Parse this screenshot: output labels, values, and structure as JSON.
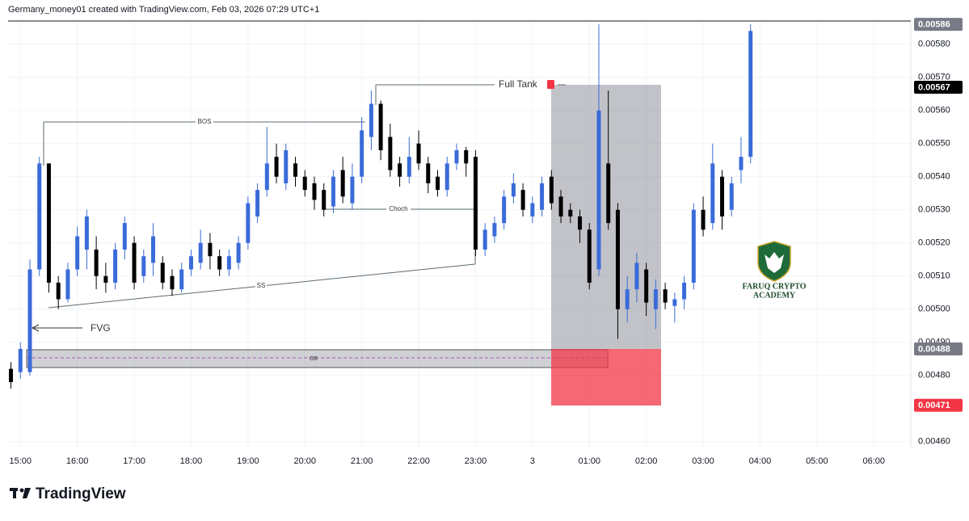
{
  "header": "Germany_money01 created with TradingView.com, Feb 03, 2026 07:29 UTC+1",
  "footer": "TradingView",
  "watermark": [
    "FARUQ CRYPTO",
    "ACADEMY"
  ],
  "chart_data": {
    "type": "candlestick",
    "up_color": "#3a6bd9",
    "down_color": "#000000",
    "x": [
      -10,
      0,
      10,
      20,
      30,
      40,
      50,
      60,
      70,
      80,
      90,
      100,
      110,
      120,
      130,
      140,
      150,
      160,
      170,
      180,
      190,
      200,
      210,
      220,
      230,
      240,
      250,
      260,
      270,
      280,
      290,
      300,
      310,
      320,
      330,
      340,
      350,
      360,
      370,
      380,
      390,
      400,
      410,
      420,
      430,
      440,
      450,
      460,
      470,
      480,
      490,
      500,
      510,
      520,
      530,
      540,
      550,
      560,
      570,
      580,
      590,
      600,
      610,
      620,
      630,
      640,
      650,
      660,
      670,
      680,
      690,
      700,
      710,
      720,
      730,
      740,
      750,
      760,
      770
    ],
    "open": [
      0.00482,
      0.00481,
      0.00481,
      0.00512,
      0.00544,
      0.00508,
      0.00503,
      0.00512,
      0.00518,
      0.00518,
      0.0051,
      0.00508,
      0.00518,
      0.0052,
      0.0051,
      0.00514,
      0.00514,
      0.0051,
      0.00506,
      0.00512,
      0.00514,
      0.0052,
      0.00516,
      0.00512,
      0.00514,
      0.0052,
      0.00528,
      0.00536,
      0.00546,
      0.00538,
      0.00544,
      0.0054,
      0.00538,
      0.00536,
      0.00531,
      0.00542,
      0.00532,
      0.0054,
      0.00552,
      0.00562,
      0.00552,
      0.00544,
      0.0054,
      0.0055,
      0.00544,
      0.0054,
      0.00536,
      0.00544,
      0.00548,
      0.00546,
      0.00518,
      0.00522,
      0.00526,
      0.00534,
      0.00536,
      0.00528,
      0.0053,
      0.0054,
      0.00534,
      0.0053,
      0.00528,
      0.00524,
      0.00512,
      0.00544,
      0.0053,
      0.005,
      0.00506,
      0.00512,
      0.005,
      0.00506,
      0.00501,
      0.00503,
      0.00508,
      0.0053,
      0.00526,
      0.0054,
      0.0053,
      0.00542,
      0.00546
    ],
    "high": [
      0.00484,
      0.0049,
      0.00515,
      0.00546,
      0.00544,
      0.0051,
      0.00514,
      0.00525,
      0.0053,
      0.00522,
      0.00514,
      0.0052,
      0.00528,
      0.00522,
      0.00518,
      0.00526,
      0.00516,
      0.00512,
      0.00514,
      0.00518,
      0.00524,
      0.00523,
      0.00518,
      0.00518,
      0.00522,
      0.00534,
      0.00538,
      0.00555,
      0.0055,
      0.0055,
      0.00546,
      0.00542,
      0.0054,
      0.00538,
      0.00542,
      0.00546,
      0.00544,
      0.00558,
      0.00566,
      0.00563,
      0.00556,
      0.00546,
      0.00552,
      0.00554,
      0.00546,
      0.00542,
      0.00546,
      0.0055,
      0.00549,
      0.00548,
      0.00526,
      0.00528,
      0.00536,
      0.00541,
      0.00538,
      0.00534,
      0.0054,
      0.00542,
      0.00536,
      0.00532,
      0.0053,
      0.00526,
      0.00586,
      0.00566,
      0.00532,
      0.0051,
      0.00517,
      0.00514,
      0.00509,
      0.00508,
      0.00505,
      0.0051,
      0.00532,
      0.00534,
      0.0055,
      0.00542,
      0.0054,
      0.00552,
      0.00586
    ],
    "low": [
      0.00476,
      0.00479,
      0.0048,
      0.0051,
      0.00505,
      0.005,
      0.00502,
      0.0051,
      0.00512,
      0.00506,
      0.00505,
      0.00506,
      0.00515,
      0.00506,
      0.00508,
      0.0051,
      0.00506,
      0.00504,
      0.00505,
      0.0051,
      0.00512,
      0.00512,
      0.0051,
      0.0051,
      0.00512,
      0.00518,
      0.00526,
      0.00534,
      0.00538,
      0.00536,
      0.00537,
      0.00534,
      0.0053,
      0.00528,
      0.00529,
      0.00532,
      0.0053,
      0.00538,
      0.00548,
      0.00545,
      0.0054,
      0.00537,
      0.00538,
      0.00542,
      0.00535,
      0.00534,
      0.00534,
      0.00542,
      0.0054,
      0.00516,
      0.00516,
      0.0052,
      0.00524,
      0.00532,
      0.00528,
      0.00526,
      0.00528,
      0.0053,
      0.00526,
      0.00526,
      0.0052,
      0.00506,
      0.0051,
      0.00524,
      0.00491,
      0.00496,
      0.00502,
      0.00498,
      0.00494,
      0.005,
      0.00496,
      0.005,
      0.00506,
      0.00522,
      0.00524,
      0.00524,
      0.00528,
      0.00538,
      0.00544
    ],
    "close": [
      0.00478,
      0.00488,
      0.00512,
      0.00544,
      0.00508,
      0.00503,
      0.00512,
      0.00522,
      0.00528,
      0.0051,
      0.00508,
      0.00518,
      0.00526,
      0.00508,
      0.00516,
      0.00522,
      0.00508,
      0.00506,
      0.00512,
      0.00516,
      0.0052,
      0.00516,
      0.00512,
      0.00516,
      0.0052,
      0.00532,
      0.00536,
      0.00544,
      0.0054,
      0.00548,
      0.0054,
      0.00536,
      0.00533,
      0.0053,
      0.0054,
      0.00534,
      0.0054,
      0.00554,
      0.00562,
      0.00548,
      0.00542,
      0.0054,
      0.00546,
      0.00544,
      0.00538,
      0.00536,
      0.00544,
      0.00548,
      0.00544,
      0.00518,
      0.00524,
      0.00526,
      0.00534,
      0.00538,
      0.0053,
      0.00532,
      0.00538,
      0.00532,
      0.00528,
      0.00528,
      0.00524,
      0.00508,
      0.0056,
      0.00526,
      0.005,
      0.00506,
      0.00514,
      0.00502,
      0.00506,
      0.00502,
      0.00503,
      0.00508,
      0.0053,
      0.00524,
      0.00544,
      0.00528,
      0.00538,
      0.00546,
      0.00584
    ],
    "xlim": [
      -13,
      939
    ],
    "xticks": [
      {
        "value": 0,
        "label": "15:00"
      },
      {
        "value": 60,
        "label": "16:00"
      },
      {
        "value": 120,
        "label": "17:00"
      },
      {
        "value": 180,
        "label": "18:00"
      },
      {
        "value": 240,
        "label": "19:00"
      },
      {
        "value": 300,
        "label": "20:00"
      },
      {
        "value": 360,
        "label": "21:00"
      },
      {
        "value": 420,
        "label": "22:00"
      },
      {
        "value": 480,
        "label": "23:00"
      },
      {
        "value": 540,
        "label": "3"
      },
      {
        "value": 600,
        "label": "01:00"
      },
      {
        "value": 660,
        "label": "02:00"
      },
      {
        "value": 720,
        "label": "03:00"
      },
      {
        "value": 780,
        "label": "04:00"
      },
      {
        "value": 840,
        "label": "05:00"
      },
      {
        "value": 900,
        "label": "06:00"
      }
    ],
    "ylim": [
      0.00458,
      0.00587
    ],
    "yticks": [
      {
        "value": 0.0046,
        "label": "0.00460"
      },
      {
        "value": 0.0048,
        "label": "0.00480"
      },
      {
        "value": 0.0049,
        "label": "0.00490"
      },
      {
        "value": 0.005,
        "label": "0.00500"
      },
      {
        "value": 0.0051,
        "label": "0.00510"
      },
      {
        "value": 0.0052,
        "label": "0.00520"
      },
      {
        "value": 0.0053,
        "label": "0.00530"
      },
      {
        "value": 0.0054,
        "label": "0.00540"
      },
      {
        "value": 0.0055,
        "label": "0.00550"
      },
      {
        "value": 0.0056,
        "label": "0.00560"
      },
      {
        "value": 0.0057,
        "label": "0.00570"
      },
      {
        "value": 0.0058,
        "label": "0.00580"
      }
    ],
    "grid": true,
    "price_labels": [
      {
        "value": 0.00586,
        "label": "0.00586",
        "color": "#787b86"
      },
      {
        "value": 0.00567,
        "label": "0.00567",
        "color": "#000000"
      },
      {
        "value": 0.00488,
        "label": "0.00488",
        "color": "#787b86"
      },
      {
        "value": 0.00471,
        "label": "0.00471",
        "color": "#f23645"
      }
    ],
    "annotations": {
      "bos": "BOS",
      "choch": "Choch",
      "ss": "SS",
      "fvg": "FVG",
      "ob": "OB",
      "full_tank": "Full Tank"
    }
  }
}
